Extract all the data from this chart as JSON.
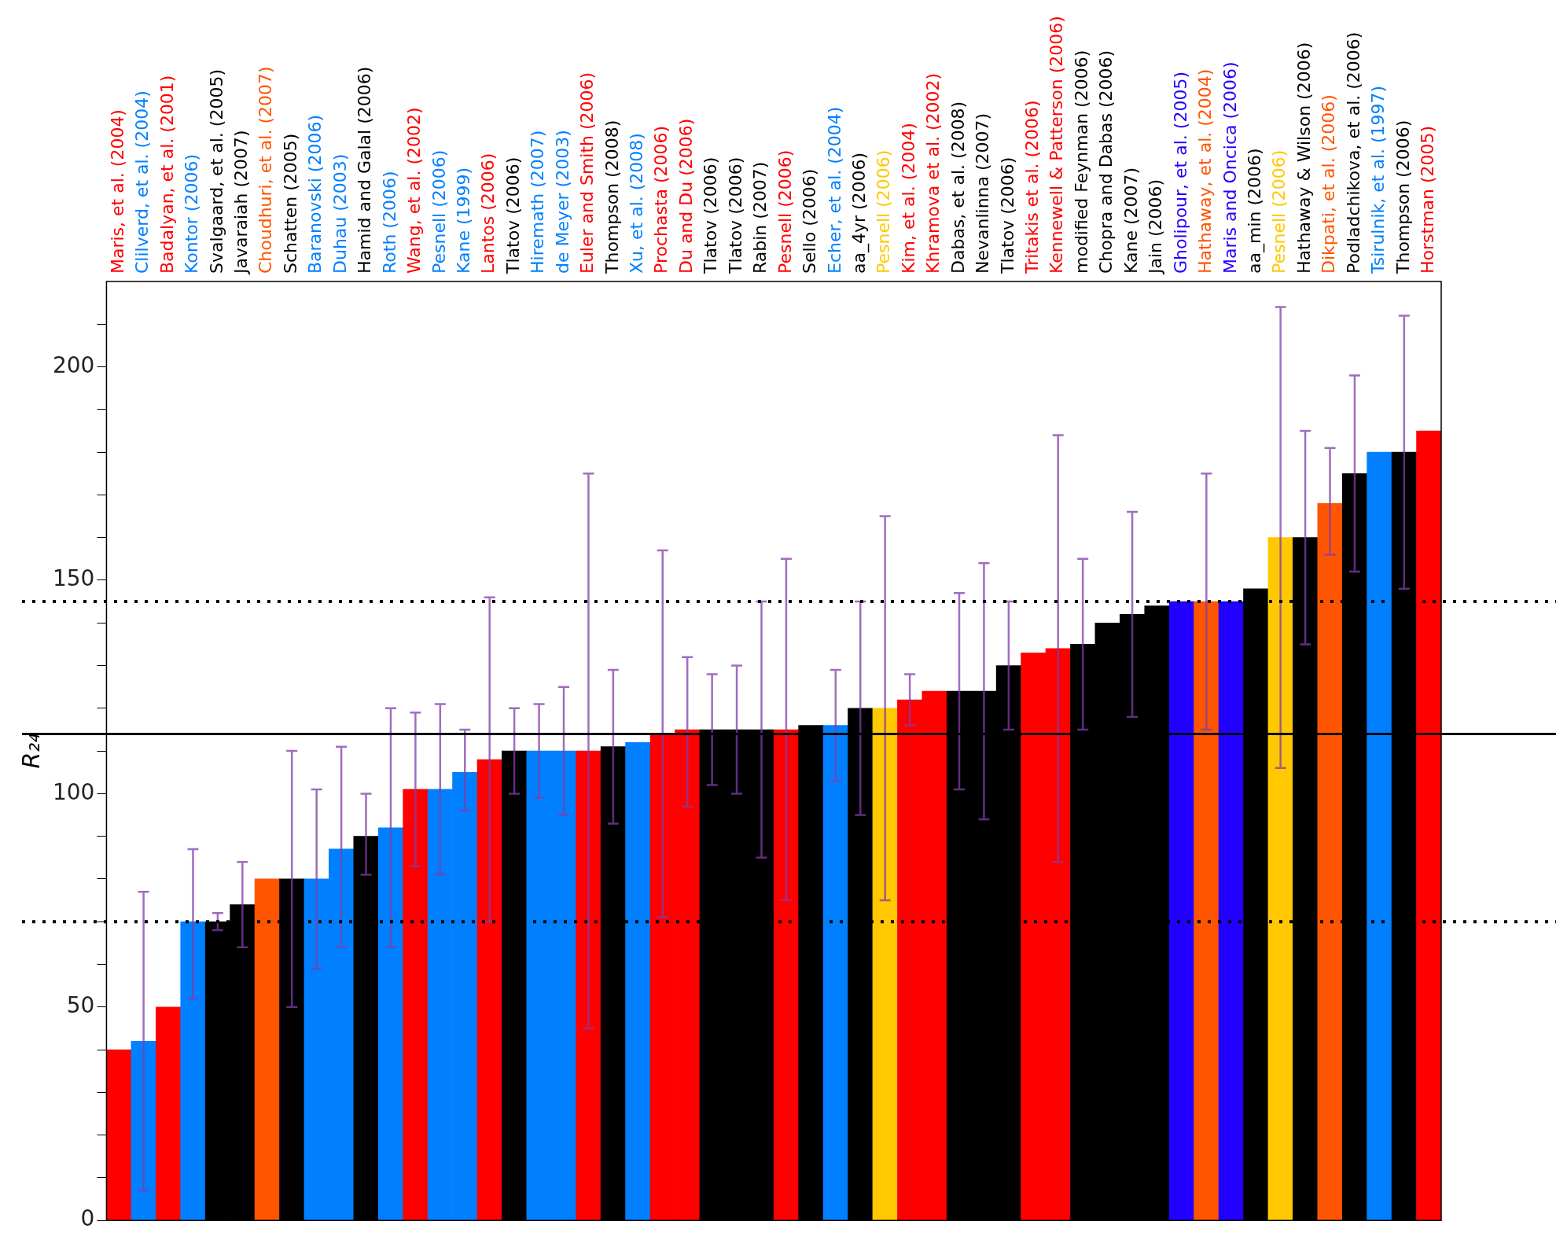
{
  "chart_data": {
    "type": "bar",
    "ylabel": "R₂₄",
    "categories": [
      "Maris, et al. (2004)",
      "Clilverd, et al. (2004)",
      "Badalyan, et al. (2001)",
      "Kontor (2006)",
      "Svalgaard, et al. (2005)",
      "Javaraiah (2007)",
      "Choudhuri, et al. (2007)",
      "Schatten (2005)",
      "Baranovski (2006)",
      "Duhau (2003)",
      "Hamid and Galal (2006)",
      "Roth (2006)",
      "Wang, et al. (2002)",
      "Pesnell (2006)",
      "Kane (1999)",
      "Lantos (2006)",
      "Tlatov (2006)",
      "Hiremath (2007)",
      "de Meyer (2003)",
      "Euler and Smith (2006)",
      "Thompson (2008)",
      "Xu, et al. (2008)",
      "Prochasta (2006)",
      "Du and Du (2006)",
      "Tlatov (2006)",
      "Tlatov (2006)",
      "Rabin (2007)",
      "Pesnell (2006)",
      "Sello (2006)",
      "Echer, et al. (2004)",
      "aa_4yr (2006)",
      "Pesnell (2006)",
      "Kim, et al. (2004)",
      "Khramova et al. (2002)",
      "Dabas, et al. (2008)",
      "Nevanlinna (2007)",
      "Tlatov (2006)",
      "Tritakis et al. (2006)",
      "Kennewell & Patterson (2006)",
      "modified Feynman (2006)",
      "Chopra and Dabas (2006)",
      "Kane (2007)",
      "Jain (2006)",
      "Gholipour, et al. (2005)",
      "Hathaway, et al. (2004)",
      "Maris and Oncica (2006)",
      "aa_min (2006)",
      "Pesnell (2006)",
      "Hathaway & Wilson (2006)",
      "Dikpati, et al. (2006)",
      "Podladchikova, et al. (2006)",
      "Tsirulnik, et al. (1997)",
      "Thompson (2006)",
      "Horstman (2005)"
    ],
    "values": [
      40,
      42,
      50,
      70,
      70,
      74,
      80,
      80,
      80,
      87,
      90,
      92,
      101,
      101,
      105,
      108,
      110,
      110,
      110,
      110,
      111,
      112,
      114,
      115,
      115,
      115,
      115,
      115,
      116,
      116,
      120,
      120,
      122,
      124,
      124,
      124,
      130,
      133,
      134,
      135,
      140,
      142,
      144,
      145,
      145,
      145,
      148,
      160,
      160,
      168,
      175,
      180,
      180,
      185
    ],
    "errors": [
      null,
      [
        7,
        77
      ],
      null,
      [
        52,
        87
      ],
      [
        68,
        72
      ],
      [
        64,
        84
      ],
      null,
      [
        50,
        110
      ],
      [
        59,
        101
      ],
      [
        64,
        111
      ],
      [
        81,
        100
      ],
      [
        64,
        120
      ],
      [
        83,
        119
      ],
      [
        81,
        121
      ],
      [
        96,
        115
      ],
      [
        70,
        146
      ],
      [
        100,
        120
      ],
      [
        99,
        121
      ],
      [
        95,
        125
      ],
      [
        45,
        175
      ],
      [
        93,
        129
      ],
      null,
      [
        71,
        157
      ],
      [
        97,
        132
      ],
      [
        102,
        128
      ],
      [
        100,
        130
      ],
      [
        85,
        145
      ],
      [
        75,
        155
      ],
      null,
      [
        103,
        129
      ],
      [
        95,
        145
      ],
      [
        75,
        165
      ],
      [
        116,
        128
      ],
      null,
      [
        101,
        147
      ],
      [
        94,
        154
      ],
      [
        115,
        145
      ],
      null,
      [
        84,
        184
      ],
      [
        115,
        155
      ],
      null,
      [
        118,
        166
      ],
      null,
      null,
      [
        115,
        175
      ],
      null,
      null,
      [
        106,
        214
      ],
      [
        135,
        185
      ],
      [
        156,
        181
      ],
      [
        152,
        198
      ],
      null,
      [
        148,
        212
      ],
      null
    ],
    "colors": [
      "#ff0000",
      "#0080ff",
      "#ff0000",
      "#0080ff",
      "#000000",
      "#000000",
      "#ff5500",
      "#000000",
      "#0080ff",
      "#0080ff",
      "#000000",
      "#0080ff",
      "#ff0000",
      "#0080ff",
      "#0080ff",
      "#ff0000",
      "#000000",
      "#0080ff",
      "#0080ff",
      "#ff0000",
      "#000000",
      "#0080ff",
      "#ff0000",
      "#ff0000",
      "#000000",
      "#000000",
      "#000000",
      "#ff0000",
      "#000000",
      "#0080ff",
      "#000000",
      "#ffc800",
      "#ff0000",
      "#ff0000",
      "#000000",
      "#000000",
      "#000000",
      "#ff0000",
      "#ff0000",
      "#000000",
      "#000000",
      "#000000",
      "#000000",
      "#2200ff",
      "#ff5500",
      "#2200ff",
      "#000000",
      "#ffc800",
      "#000000",
      "#ff5500",
      "#000000",
      "#0080ff",
      "#000000",
      "#ff0000"
    ],
    "ylim": [
      0,
      220
    ],
    "yticks": [
      0,
      {
        "value": 10,
        "label": null
      },
      {
        "value": 20,
        "label": null
      },
      {
        "value": 30,
        "label": null
      },
      {
        "value": 40,
        "label": null
      },
      50,
      {
        "value": 60,
        "label": null
      },
      {
        "value": 70,
        "label": null
      },
      {
        "value": 80,
        "label": null
      },
      {
        "value": 90,
        "label": null
      },
      100,
      {
        "value": 110,
        "label": null
      },
      {
        "value": 120,
        "label": null
      },
      {
        "value": 130,
        "label": null
      },
      {
        "value": 140,
        "label": null
      },
      150,
      {
        "value": 160,
        "label": null
      },
      {
        "value": 170,
        "label": null
      },
      {
        "value": 180,
        "label": null
      },
      {
        "value": 190,
        "label": null
      },
      200,
      {
        "value": 210,
        "label": null
      }
    ],
    "ref_lines": [
      {
        "axis": "y",
        "value": 114,
        "line_style": "solid",
        "color": "#000000"
      },
      {
        "axis": "y",
        "value": 145,
        "line_style": "dotted",
        "color": "#000000"
      },
      {
        "axis": "y",
        "value": 70,
        "line_style": "dotted",
        "color": "#000000"
      }
    ]
  }
}
